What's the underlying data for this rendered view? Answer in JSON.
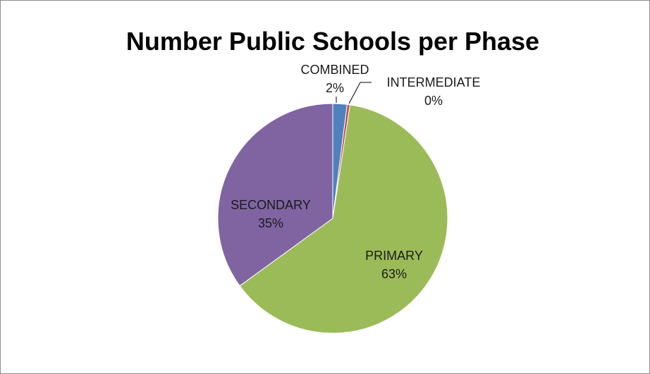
{
  "chart_data": {
    "type": "pie",
    "title": "Number Public Schools per Phase",
    "categories": [
      "COMBINED",
      "INTERMEDIATE",
      "PRIMARY",
      "SECONDARY"
    ],
    "values": [
      2,
      0.4,
      62.6,
      35
    ],
    "percent_labels": [
      "2%",
      "0%",
      "63%",
      "35%"
    ],
    "colors": [
      "#4f81bd",
      "#c0504d",
      "#9bbb59",
      "#8064a2"
    ],
    "start_angle": "12 o'clock",
    "direction": "clockwise",
    "legend": "none",
    "data_labels": "category name and percentage"
  }
}
